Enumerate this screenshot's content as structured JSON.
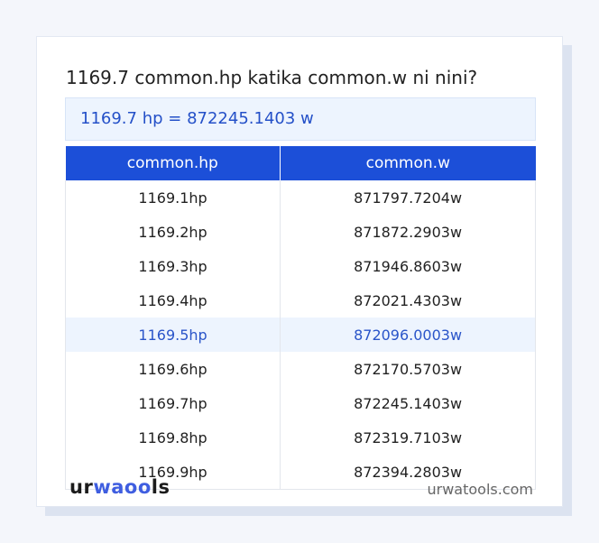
{
  "question": "1169.7 common.hp katika common.w ni nini?",
  "result": "1169.7 hp = 872245.1403 w",
  "table": {
    "headers": [
      "common.hp",
      "common.w"
    ],
    "rows": [
      [
        "1169.1hp",
        "871797.7204w"
      ],
      [
        "1169.2hp",
        "871872.2903w"
      ],
      [
        "1169.3hp",
        "871946.8603w"
      ],
      [
        "1169.4hp",
        "872021.4303w"
      ],
      [
        "1169.5hp",
        "872096.0003w"
      ],
      [
        "1169.6hp",
        "872170.5703w"
      ],
      [
        "1169.7hp",
        "872245.1403w"
      ],
      [
        "1169.8hp",
        "872319.7103w"
      ],
      [
        "1169.9hp",
        "872394.2803w"
      ]
    ],
    "highlighted_row": 4
  },
  "footer": {
    "logo": {
      "part1": "ur",
      "part2": "wa",
      "part3": "oo",
      "part4": "ls"
    },
    "site": "urwatools.com"
  },
  "colors": {
    "accent": "#1c4fd8",
    "highlight_bg": "#edf4fe",
    "highlight_text": "#2a55c9"
  }
}
